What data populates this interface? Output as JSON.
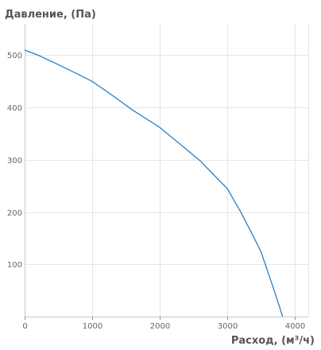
{
  "chart_data": {
    "type": "line",
    "ylabel": "Давление, (Па)",
    "xlabel": "Расход, (м³/ч)",
    "xlim": [
      0,
      4200
    ],
    "ylim": [
      0,
      560
    ],
    "x_ticks": [
      0,
      1000,
      2000,
      3000,
      4000
    ],
    "y_ticks": [
      100,
      200,
      300,
      400,
      500
    ],
    "grid": true,
    "colors": {
      "line": "#2a7fc4",
      "grid": "#e6e6e6",
      "tick": "#5b9bd5"
    },
    "series": [
      {
        "x": [
          0,
          200,
          500,
          800,
          1000,
          1300,
          1600,
          2000,
          2300,
          2600,
          2900,
          3000,
          3200,
          3400,
          3500,
          3600,
          3700,
          3820
        ],
        "y": [
          510,
          500,
          482,
          463,
          450,
          423,
          395,
          362,
          330,
          298,
          258,
          245,
          200,
          150,
          124,
          86,
          48,
          0
        ]
      }
    ]
  }
}
